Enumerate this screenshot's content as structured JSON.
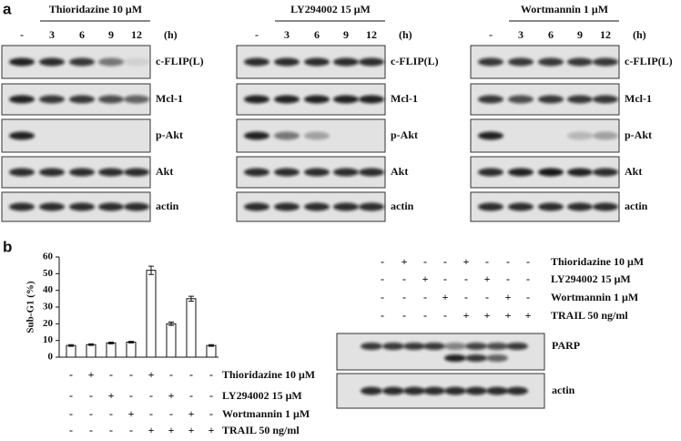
{
  "panel_a": {
    "label": "a",
    "unit": "(h)",
    "blots": [
      {
        "title": "Thioridazine 10 μM",
        "lanes": [
          "-",
          "3",
          "6",
          "9",
          "12"
        ],
        "rows": [
          "c-FLIP(L)",
          "Mcl-1",
          "p-Akt",
          "Akt",
          "actin"
        ]
      },
      {
        "title": "LY294002 15 μM",
        "lanes": [
          "-",
          "3",
          "6",
          "9",
          "12"
        ],
        "rows": [
          "c-FLIP(L)",
          "Mcl-1",
          "p-Akt",
          "Akt",
          "actin"
        ]
      },
      {
        "title": "Wortmannin 1 μM",
        "lanes": [
          "-",
          "3",
          "6",
          "9",
          "12"
        ],
        "rows": [
          "c-FLIP(L)",
          "Mcl-1",
          "p-Akt",
          "Akt",
          "actin"
        ]
      }
    ]
  },
  "panel_b": {
    "label": "b"
  },
  "chart_data": {
    "type": "bar",
    "y_label": "Sub-G1 (%)",
    "values": [
      7,
      7.5,
      8.5,
      9,
      52,
      20,
      35,
      7
    ],
    "errors": [
      0.5,
      0.5,
      0.5,
      0.5,
      2.5,
      1,
      1.5,
      0.5
    ],
    "color": "#ffffff",
    "ylim": [
      0,
      60
    ],
    "yticks": [
      0,
      10,
      20,
      30,
      40,
      50,
      60
    ],
    "treatments": [
      {
        "name": "Thioridazine 10 μM",
        "signs": [
          "-",
          "+",
          "-",
          "-",
          "+",
          "-",
          "-",
          "-"
        ]
      },
      {
        "name": "LY294002 15 μM",
        "signs": [
          "-",
          "-",
          "+",
          "-",
          "-",
          "+",
          "-",
          "-"
        ]
      },
      {
        "name": "Wortmannin 1 μM",
        "signs": [
          "-",
          "-",
          "-",
          "+",
          "-",
          "-",
          "+",
          "-"
        ]
      },
      {
        "name": "TRAIL 50 ng/ml",
        "signs": [
          "-",
          "-",
          "-",
          "-",
          "+",
          "+",
          "+",
          "+"
        ]
      }
    ]
  },
  "parp_blot": {
    "rows": [
      "PARP",
      "actin"
    ],
    "treatments": [
      {
        "name": "Thioridazine 10 μM",
        "signs": [
          "-",
          "+",
          "-",
          "-",
          "+",
          "-",
          "-",
          "-"
        ]
      },
      {
        "name": "LY294002 15 μM",
        "signs": [
          "-",
          "-",
          "+",
          "-",
          "-",
          "+",
          "-",
          "-"
        ]
      },
      {
        "name": "Wortmannin 1 μM",
        "signs": [
          "-",
          "-",
          "-",
          "+",
          "-",
          "-",
          "+",
          "-"
        ]
      },
      {
        "name": "TRAIL 50 ng/ml",
        "signs": [
          "-",
          "-",
          "-",
          "-",
          "+",
          "+",
          "+",
          "+"
        ]
      }
    ]
  }
}
